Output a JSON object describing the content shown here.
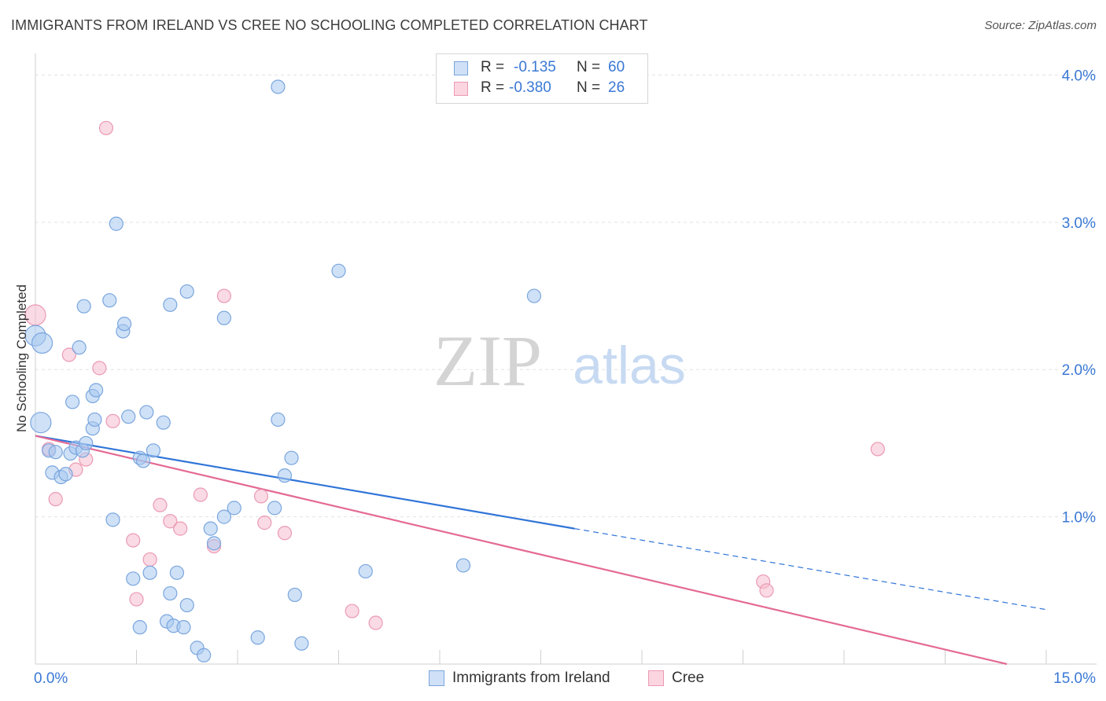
{
  "header": {
    "title": "IMMIGRANTS FROM IRELAND VS CREE NO SCHOOLING COMPLETED CORRELATION CHART",
    "source": "Source: ZipAtlas.com"
  },
  "watermark": {
    "zip": "ZIP",
    "atlas": "atlas"
  },
  "legend": {
    "rows": [
      {
        "r_label": "R =",
        "r_value": "-0.135",
        "n_label": "N =",
        "n_value": "60",
        "color": "#a8c8f0"
      },
      {
        "r_label": "R =",
        "r_value": "-0.380",
        "n_label": "N =",
        "n_value": "26",
        "color": "#f6bccd"
      }
    ]
  },
  "bottom_legend": [
    {
      "label": "Immigrants from Ireland",
      "color": "#a8c8f0"
    },
    {
      "label": "Cree",
      "color": "#f6bccd"
    }
  ],
  "chart_data": {
    "type": "scatter",
    "title": "IMMIGRANTS FROM IRELAND VS CREE NO SCHOOLING COMPLETED CORRELATION CHART",
    "xlabel": "",
    "ylabel": "No Schooling Completed",
    "xlim": [
      0,
      15
    ],
    "ylim": [
      0,
      4.2
    ],
    "x_tick_labels": [
      "0.0%",
      "15.0%"
    ],
    "y_ticks": [
      1.0,
      2.0,
      3.0,
      4.0
    ],
    "y_tick_labels": [
      "1.0%",
      "2.0%",
      "3.0%",
      "4.0%"
    ],
    "grid": true,
    "colors": {
      "blue_fill": "#a8c8f0",
      "blue_stroke": "#7aa6de",
      "blue_line": "#2f74d8",
      "pink_fill": "#f6bccd",
      "pink_stroke": "#eb9ab3",
      "pink_line": "#e46a95",
      "tick_label": "#3a78d4"
    },
    "series": [
      {
        "name": "Immigrants from Ireland",
        "points": [
          [
            0.0,
            2.23
          ],
          [
            0.1,
            2.18
          ],
          [
            0.08,
            1.64
          ],
          [
            0.2,
            1.45
          ],
          [
            0.3,
            1.44
          ],
          [
            0.25,
            1.3
          ],
          [
            0.38,
            1.27
          ],
          [
            0.45,
            1.29
          ],
          [
            0.52,
            1.43
          ],
          [
            0.6,
            1.47
          ],
          [
            0.7,
            1.45
          ],
          [
            0.75,
            1.5
          ],
          [
            0.55,
            1.78
          ],
          [
            0.85,
            1.82
          ],
          [
            0.9,
            1.86
          ],
          [
            0.65,
            2.15
          ],
          [
            0.72,
            2.43
          ],
          [
            1.1,
            2.47
          ],
          [
            1.3,
            2.26
          ],
          [
            1.32,
            2.31
          ],
          [
            1.2,
            2.99
          ],
          [
            0.85,
            1.6
          ],
          [
            0.88,
            1.66
          ],
          [
            1.38,
            1.68
          ],
          [
            1.55,
            1.4
          ],
          [
            1.6,
            1.38
          ],
          [
            1.65,
            1.71
          ],
          [
            1.75,
            1.45
          ],
          [
            1.9,
            1.64
          ],
          [
            1.15,
            0.98
          ],
          [
            1.45,
            0.58
          ],
          [
            1.55,
            0.25
          ],
          [
            1.7,
            0.62
          ],
          [
            1.95,
            0.29
          ],
          [
            2.0,
            0.48
          ],
          [
            2.05,
            0.26
          ],
          [
            2.1,
            0.62
          ],
          [
            2.2,
            0.25
          ],
          [
            2.25,
            0.4
          ],
          [
            2.4,
            0.11
          ],
          [
            2.5,
            0.06
          ],
          [
            2.6,
            0.92
          ],
          [
            2.65,
            0.82
          ],
          [
            2.8,
            1.0
          ],
          [
            2.95,
            1.06
          ],
          [
            3.3,
            0.18
          ],
          [
            3.55,
            1.06
          ],
          [
            3.7,
            1.28
          ],
          [
            3.8,
            1.4
          ],
          [
            3.85,
            0.47
          ],
          [
            3.95,
            0.14
          ],
          [
            4.5,
            2.67
          ],
          [
            4.9,
            0.63
          ],
          [
            6.35,
            0.67
          ],
          [
            7.4,
            2.5
          ],
          [
            2.0,
            2.44
          ],
          [
            2.25,
            2.53
          ],
          [
            2.8,
            2.35
          ],
          [
            3.6,
            1.66
          ],
          [
            3.6,
            3.92
          ]
        ],
        "trend": {
          "x": [
            0,
            8.0,
            15.0
          ],
          "y": [
            1.55,
            0.92,
            0.37
          ],
          "solid_until_x": 8.0
        }
      },
      {
        "name": "Cree",
        "points": [
          [
            0.0,
            2.37
          ],
          [
            0.5,
            2.1
          ],
          [
            0.2,
            1.46
          ],
          [
            0.3,
            1.12
          ],
          [
            0.6,
            1.32
          ],
          [
            0.75,
            1.39
          ],
          [
            0.95,
            2.01
          ],
          [
            1.05,
            3.64
          ],
          [
            1.15,
            1.65
          ],
          [
            1.45,
            0.84
          ],
          [
            1.5,
            0.44
          ],
          [
            1.7,
            0.71
          ],
          [
            1.85,
            1.08
          ],
          [
            2.0,
            0.97
          ],
          [
            2.15,
            0.92
          ],
          [
            2.45,
            1.15
          ],
          [
            2.65,
            0.8
          ],
          [
            2.8,
            2.5
          ],
          [
            3.35,
            1.14
          ],
          [
            3.4,
            0.96
          ],
          [
            3.7,
            0.89
          ],
          [
            4.7,
            0.36
          ],
          [
            5.05,
            0.28
          ],
          [
            10.8,
            0.56
          ],
          [
            10.85,
            0.5
          ],
          [
            12.5,
            1.46
          ]
        ],
        "trend": {
          "x": [
            0,
            15.0
          ],
          "y": [
            1.55,
            0.0
          ]
        }
      }
    ]
  }
}
